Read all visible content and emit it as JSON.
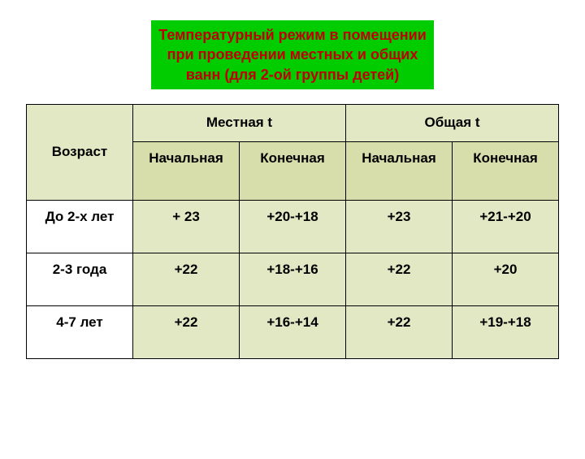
{
  "colors": {
    "page_bg": "#ffffff",
    "title_bg": "#00cc00",
    "title_text": "#c00000",
    "header_bg": "#e3e8c4",
    "subheader_bg": "#d7ddab",
    "rowcell_bg": "#e3e8c4",
    "agecell_bg": "#ffffff",
    "border": "#000000",
    "text": "#000000"
  },
  "fontsizes": {
    "title": 18,
    "cell": 17
  },
  "title": "Температурный режим в помещении при проведении местных и общих ванн (для 2-ой группы детей)",
  "table": {
    "age_header": "Возраст",
    "group_headers": [
      "Местная t",
      "Общая t"
    ],
    "sub_headers": [
      "Начальная",
      "Конечная",
      "Начальная",
      "Конечная"
    ],
    "rows": [
      {
        "age": "До 2-х лет",
        "cells": [
          "+ 23",
          "+20-+18",
          "+23",
          "+21-+20"
        ]
      },
      {
        "age": "2-3 года",
        "cells": [
          "+22",
          "+18-+16",
          "+22",
          "+20"
        ]
      },
      {
        "age": "4-7 лет",
        "cells": [
          "+22",
          "+16-+14",
          "+22",
          "+19-+18"
        ]
      }
    ]
  }
}
